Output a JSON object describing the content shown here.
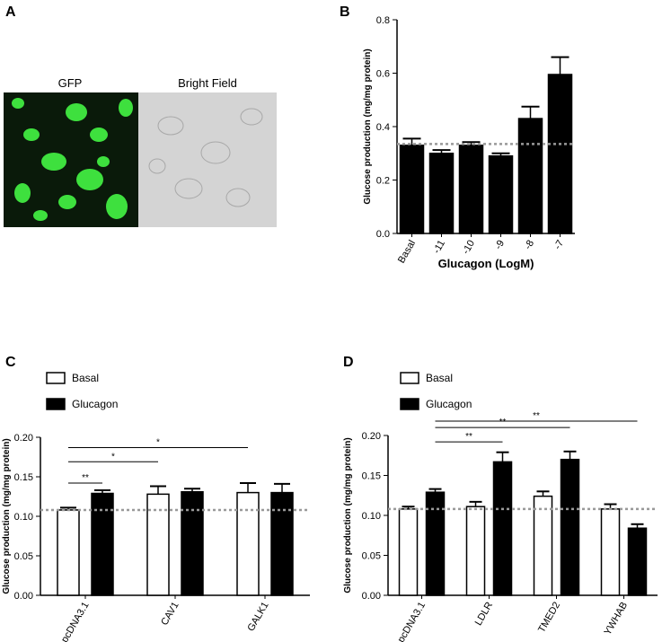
{
  "panel_labels": [
    "A",
    "B",
    "C",
    "D"
  ],
  "image_labels": [
    "GFP",
    "Bright Field"
  ],
  "chart_data": [
    {
      "type": "bar",
      "ylabel": "Glucose production (mg/mg protein)",
      "xlabel": "Glucagon (LogM)",
      "categories": [
        "Basal",
        "-11",
        "-10",
        "-9",
        "-8",
        "-7"
      ],
      "values": [
        0.33,
        0.3,
        0.33,
        0.29,
        0.43,
        0.595
      ],
      "errors": [
        0.025,
        0.012,
        0.012,
        0.01,
        0.045,
        0.065
      ],
      "color": "#000000",
      "ylim": [
        0,
        0.8
      ],
      "yticks": [
        {
          "value": 0,
          "label": "0.0"
        },
        0.2,
        0.4,
        0.6,
        0.8
      ],
      "reference_line": 0.335
    },
    {
      "type": "bar",
      "ylabel": "Glucose production (mg/mg protein)",
      "categories": [
        "pcDNA3.1",
        "CAV1",
        "GALK1"
      ],
      "series": [
        {
          "name": "Basal",
          "color": "#ffffff",
          "values": [
            0.108,
            0.128,
            0.13
          ],
          "errors": [
            0.003,
            0.01,
            0.012
          ]
        },
        {
          "name": "Glucagon",
          "color": "#000000",
          "values": [
            0.129,
            0.131,
            0.13
          ],
          "errors": [
            0.004,
            0.004,
            0.011
          ]
        }
      ],
      "ylim": [
        0,
        0.2
      ],
      "yticks": [
        {
          "value": 0,
          "label": "0.00"
        },
        {
          "value": 0.05,
          "label": "0.05"
        },
        {
          "value": 0.1,
          "label": "0.10"
        },
        {
          "value": 0.15,
          "label": "0.15"
        },
        {
          "value": 0.2,
          "label": "0.20"
        }
      ],
      "reference_line": 0.108,
      "annotations": [
        {
          "text": "**",
          "from": [
            0,
            0
          ],
          "to": [
            1,
            0
          ],
          "y": 0.142
        },
        {
          "text": "*",
          "from": [
            0,
            0
          ],
          "to": [
            0,
            1
          ],
          "y": 0.169
        },
        {
          "text": "*",
          "from": [
            0,
            0
          ],
          "to": [
            0,
            2
          ],
          "y": 0.187
        }
      ]
    },
    {
      "type": "bar",
      "ylabel": "Glucose production (mg/mg protein)",
      "categories": [
        "pcDNA3.1",
        "LDLR",
        "TMED2",
        "YWHAB"
      ],
      "series": [
        {
          "name": "Basal",
          "color": "#ffffff",
          "values": [
            0.108,
            0.111,
            0.124,
            0.108
          ],
          "errors": [
            0.003,
            0.006,
            0.006,
            0.006
          ]
        },
        {
          "name": "Glucagon",
          "color": "#000000",
          "values": [
            0.129,
            0.167,
            0.17,
            0.084
          ],
          "errors": [
            0.004,
            0.012,
            0.01,
            0.005
          ]
        }
      ],
      "ylim": [
        0,
        0.2
      ],
      "yticks": [
        {
          "value": 0,
          "label": "0.00"
        },
        {
          "value": 0.05,
          "label": "0.05"
        },
        {
          "value": 0.1,
          "label": "0.10"
        },
        {
          "value": 0.15,
          "label": "0.15"
        },
        {
          "value": 0.2,
          "label": "0.20"
        }
      ],
      "reference_line": 0.108,
      "annotations": [
        {
          "text": "**",
          "from": [
            1,
            0
          ],
          "to": [
            1,
            1
          ],
          "y": 0.192
        },
        {
          "text": "**",
          "from": [
            1,
            0
          ],
          "to": [
            1,
            2
          ],
          "y": 0.21
        },
        {
          "text": "**",
          "from": [
            1,
            0
          ],
          "to": [
            1,
            3
          ],
          "y": 0.218
        }
      ]
    }
  ]
}
